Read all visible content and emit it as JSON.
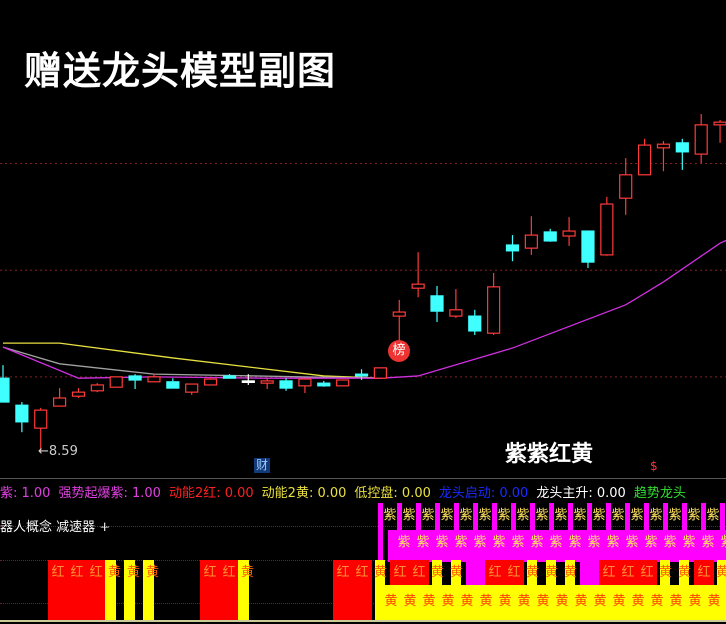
{
  "title": "赠送龙头模型副图",
  "markers": {
    "low_price_label": "8.59",
    "bang_label": "榜",
    "cai_label": "财",
    "dollar_label": "$",
    "signal_text": "紫紫红黄"
  },
  "indicators": [
    {
      "label": "紫: 1.00",
      "color": "#e040e0"
    },
    {
      "label": "强势起爆紫: 1.00",
      "color": "#e040e0"
    },
    {
      "label": "动能2红: 0.00",
      "color": "#ff2020"
    },
    {
      "label": "动能2黄: 0.00",
      "color": "#e8e040"
    },
    {
      "label": "低控盘: 0.00",
      "color": "#e8e040"
    },
    {
      "label": "龙头启动: 0.00",
      "color": "#1a2cff"
    },
    {
      "label": "龙头主升: 0.00",
      "color": "#ffffff"
    },
    {
      "label": "趋势龙头",
      "color": "#30e030"
    }
  ],
  "concept_text": "器人概念 减速器 +",
  "colors": {
    "up": "#ff3a3a",
    "down": "#40ffff",
    "doji": "#ffffff",
    "purple": "#ff00ff",
    "red": "#ff0000",
    "yellow": "#ffff00"
  },
  "chart_data": {
    "type": "candlestick",
    "title": "",
    "grid": "dashed-horizontal",
    "candles": [
      {
        "o": 10.23,
        "h": 10.52,
        "l": 9.7,
        "c": 9.7
      },
      {
        "o": 9.63,
        "h": 9.7,
        "l": 9.03,
        "c": 9.26
      },
      {
        "o": 9.12,
        "h": 9.57,
        "l": 8.59,
        "c": 9.52
      },
      {
        "o": 9.61,
        "h": 10.01,
        "l": 9.61,
        "c": 9.79
      },
      {
        "o": 9.83,
        "h": 10.01,
        "l": 9.79,
        "c": 9.92
      },
      {
        "o": 9.95,
        "h": 10.12,
        "l": 9.92,
        "c": 10.08
      },
      {
        "o": 10.03,
        "h": 10.26,
        "l": 10.03,
        "c": 10.26
      },
      {
        "o": 10.28,
        "h": 10.32,
        "l": 9.99,
        "c": 10.19
      },
      {
        "o": 10.15,
        "h": 10.32,
        "l": 10.15,
        "c": 10.26
      },
      {
        "o": 10.15,
        "h": 10.23,
        "l": 10.01,
        "c": 10.01
      },
      {
        "o": 9.92,
        "h": 10.1,
        "l": 9.86,
        "c": 10.1
      },
      {
        "o": 10.08,
        "h": 10.23,
        "l": 10.08,
        "c": 10.21
      },
      {
        "o": 10.28,
        "h": 10.32,
        "l": 10.23,
        "c": 10.23
      },
      {
        "o": 10.17,
        "h": 10.32,
        "l": 10.08,
        "c": 10.17
      },
      {
        "o": 10.12,
        "h": 10.23,
        "l": 9.99,
        "c": 10.17
      },
      {
        "o": 10.17,
        "h": 10.23,
        "l": 9.95,
        "c": 10.01
      },
      {
        "o": 10.06,
        "h": 10.21,
        "l": 9.9,
        "c": 10.21
      },
      {
        "o": 10.12,
        "h": 10.17,
        "l": 10.04,
        "c": 10.06
      },
      {
        "o": 10.06,
        "h": 10.19,
        "l": 10.06,
        "c": 10.19
      },
      {
        "o": 10.32,
        "h": 10.43,
        "l": 10.19,
        "c": 10.28
      },
      {
        "o": 10.23,
        "h": 10.46,
        "l": 10.23,
        "c": 10.46
      },
      {
        "o": 11.61,
        "h": 11.97,
        "l": 10.97,
        "c": 11.7
      },
      {
        "o": 12.23,
        "h": 13.03,
        "l": 12.03,
        "c": 12.32
      },
      {
        "o": 12.06,
        "h": 12.28,
        "l": 11.48,
        "c": 11.72
      },
      {
        "o": 11.61,
        "h": 12.21,
        "l": 11.57,
        "c": 11.75
      },
      {
        "o": 11.61,
        "h": 11.75,
        "l": 11.19,
        "c": 11.28
      },
      {
        "o": 11.23,
        "h": 12.57,
        "l": 11.19,
        "c": 12.26
      },
      {
        "o": 13.19,
        "h": 13.41,
        "l": 12.83,
        "c": 13.06
      },
      {
        "o": 13.12,
        "h": 13.83,
        "l": 12.97,
        "c": 13.41
      },
      {
        "o": 13.48,
        "h": 13.55,
        "l": 13.26,
        "c": 13.28
      },
      {
        "o": 13.39,
        "h": 13.81,
        "l": 13.17,
        "c": 13.5
      },
      {
        "o": 13.5,
        "h": 13.5,
        "l": 12.68,
        "c": 12.81
      },
      {
        "o": 12.97,
        "h": 14.26,
        "l": 12.95,
        "c": 14.1
      },
      {
        "o": 14.23,
        "h": 15.12,
        "l": 13.86,
        "c": 14.75
      },
      {
        "o": 14.75,
        "h": 15.55,
        "l": 14.75,
        "c": 15.41
      },
      {
        "o": 15.35,
        "h": 15.5,
        "l": 14.83,
        "c": 15.43
      },
      {
        "o": 15.46,
        "h": 15.55,
        "l": 14.86,
        "c": 15.26
      },
      {
        "o": 15.21,
        "h": 16.1,
        "l": 15.01,
        "c": 15.86
      },
      {
        "o": 15.86,
        "h": 15.97,
        "l": 15.46,
        "c": 15.92
      }
    ],
    "low_marker": {
      "index": 2,
      "value": 8.59
    },
    "grid_levels": [
      15.0,
      12.63,
      10.26
    ],
    "ma_lines": [
      {
        "color": "#e8e040",
        "points": [
          [
            0,
            11.01
          ],
          [
            3,
            11.01
          ],
          [
            9,
            10.68
          ],
          [
            17,
            10.28
          ],
          [
            20,
            10.23
          ]
        ]
      },
      {
        "color": "#a0a0a0",
        "points": [
          [
            0,
            10.92
          ],
          [
            3,
            10.55
          ],
          [
            8,
            10.32
          ],
          [
            16,
            10.26
          ],
          [
            20,
            10.23
          ]
        ]
      },
      {
        "color": "#d030e0",
        "points": [
          [
            0,
            10.92
          ],
          [
            4,
            10.23
          ],
          [
            8,
            10.26
          ],
          [
            14,
            10.23
          ],
          [
            20,
            10.23
          ],
          [
            22,
            10.28
          ],
          [
            27,
            10.9
          ],
          [
            33,
            11.86
          ],
          [
            35,
            12.37
          ],
          [
            38,
            13.23
          ],
          [
            39.3,
            13.48
          ]
        ]
      }
    ]
  },
  "bottom_panel": {
    "sequence": [
      "红",
      "红",
      "红",
      "黄",
      "黄",
      "黄",
      "",
      "",
      "红",
      "红",
      "黄",
      "",
      "",
      "",
      "",
      "红",
      "红",
      "黄",
      "红",
      "红",
      "黄",
      "黄",
      "紫",
      "红",
      "红",
      "黄",
      "黄",
      "黄",
      "紫",
      "红",
      "红",
      "红",
      "黄",
      "黄",
      "红",
      "黄"
    ],
    "top_row_label": "紫",
    "mid_row_label": "紫",
    "bottom_row_label": "黄"
  }
}
